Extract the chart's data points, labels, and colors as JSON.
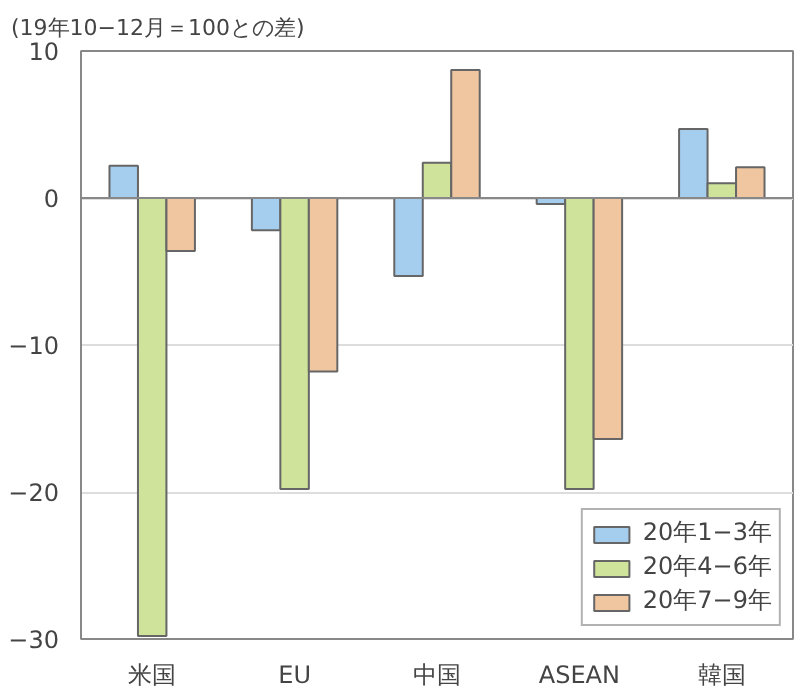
{
  "chart_data": {
    "type": "bar",
    "ylabel": "(19年10−12月＝100との差)",
    "categories": [
      "米国",
      "EU",
      "中国",
      "ASEAN",
      "韓国"
    ],
    "series": [
      {
        "name": "20年1−3年",
        "color": "#a5cdee",
        "values": [
          2.2,
          -2.2,
          -5.3,
          -0.4,
          4.7
        ]
      },
      {
        "name": "20年4−6年",
        "color": "#cfe39a",
        "values": [
          -29.8,
          -19.8,
          2.4,
          -19.8,
          1.0
        ]
      },
      {
        "name": "20年7−9年",
        "color": "#f0c6a0",
        "values": [
          -3.6,
          -11.8,
          8.7,
          -16.4,
          2.1
        ]
      }
    ],
    "ylim": [
      -30,
      10
    ],
    "yticks": [
      {
        "value": -30,
        "label": "−30"
      },
      {
        "value": -20,
        "label": "−20"
      },
      {
        "value": -10,
        "label": "−10"
      },
      0,
      10
    ],
    "grid": "y",
    "legend": "bottom right"
  }
}
